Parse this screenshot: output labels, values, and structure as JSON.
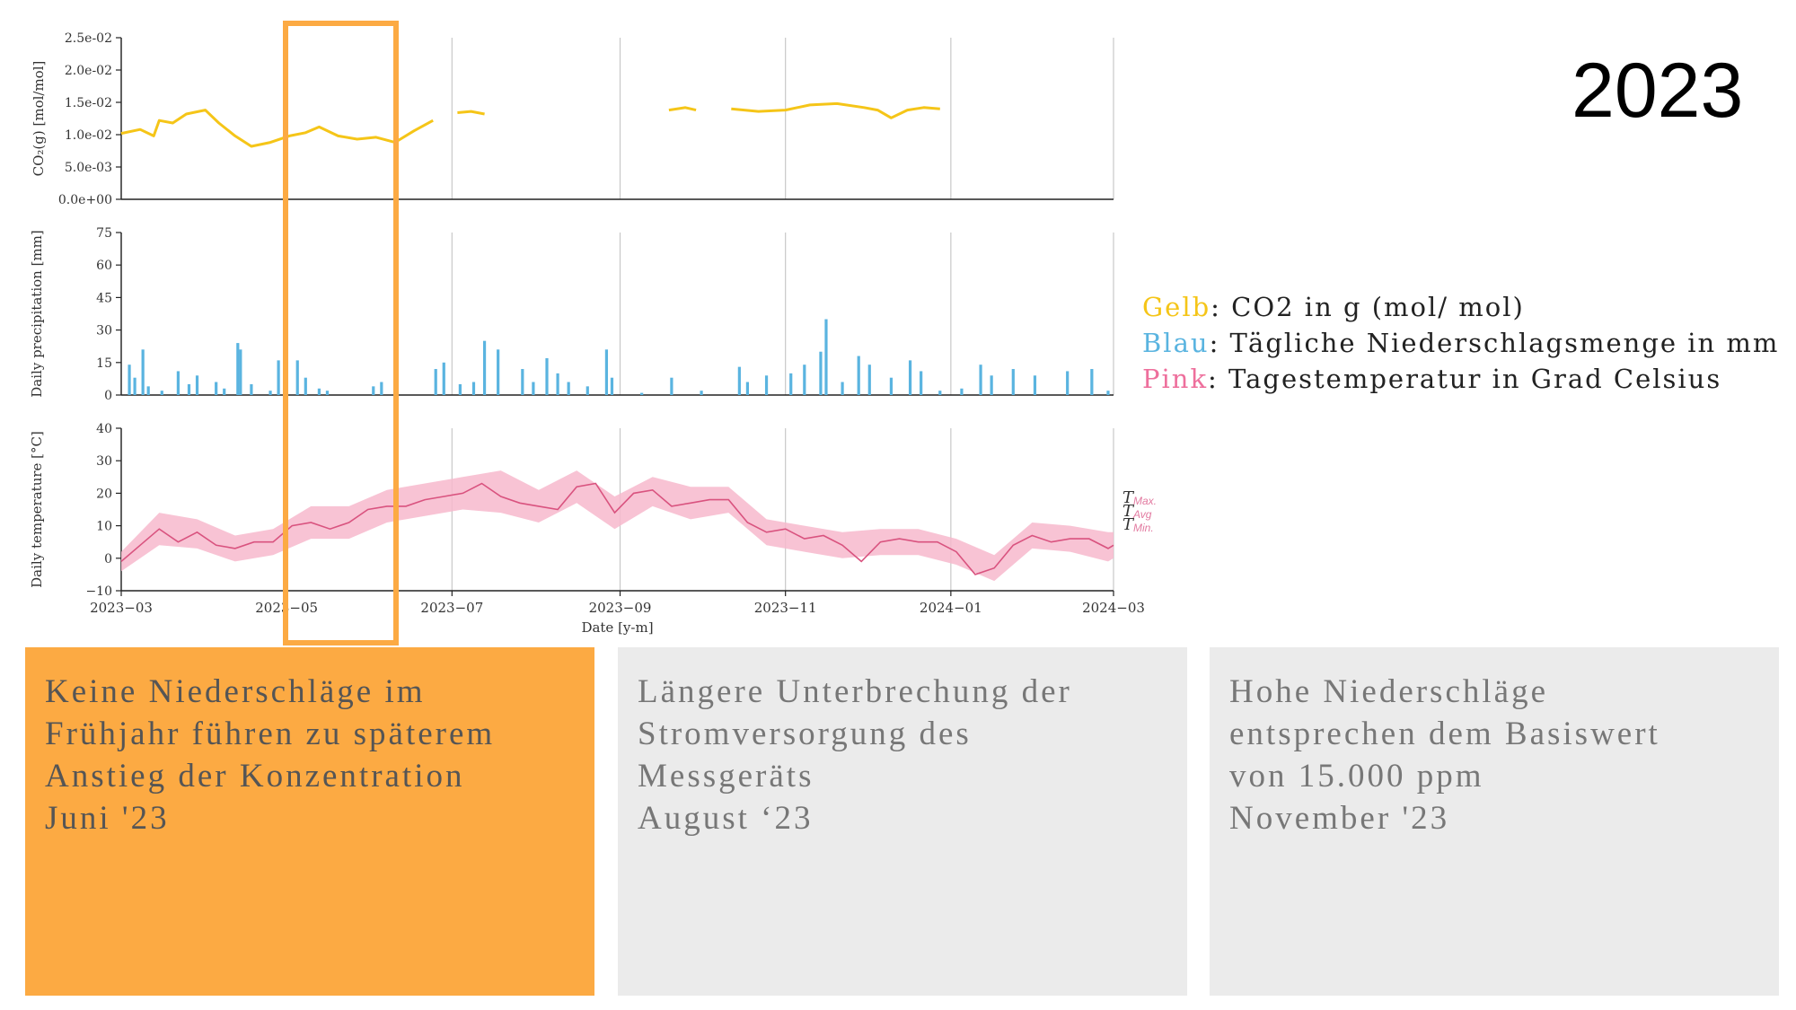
{
  "year_label": "2023",
  "legend": [
    {
      "key": "Gelb",
      "text": ": CO2 in g (mol/ mol)",
      "color": "#f5c518"
    },
    {
      "key": "Blau",
      "text": ": Tägliche Niederschlagsmenge in mm",
      "color": "#5ab4e0"
    },
    {
      "key": "Pink",
      "text": ": Tagestemperatur in Grad Celsius",
      "color": "#ee6f9c"
    }
  ],
  "panels": [
    {
      "lines": [
        "Keine Niederschläge im",
        "Frühjahr führen zu späterem",
        "Anstieg der Konzentration",
        "Juni '23"
      ]
    },
    {
      "lines": [
        "Längere Unterbrechung der",
        "Stromversorgung des",
        "Messgeräts",
        "August ‘23"
      ]
    },
    {
      "lines": [
        "Hohe Niederschläge",
        "entsprechen dem Basiswert",
        "von 15.000 ppm",
        "November '23"
      ]
    }
  ],
  "colors": {
    "co2": "#f5c518",
    "precip": "#5ab4e0",
    "temp_line": "#d9537f",
    "temp_band": "#f7b8cc",
    "highlight": "#fcaa43",
    "grid": "#c8c8c8"
  },
  "chart_data": [
    {
      "type": "line",
      "ylabel": "CO₂(g) [mol/mol]",
      "ylim": [
        0,
        0.025
      ],
      "yticks": [
        "0.0e+00",
        "5.0e-03",
        "1.0e-02",
        "1.5e-02",
        "2.0e-02",
        "2.5e-02"
      ],
      "yticks_values": [
        0,
        0.005,
        0.01,
        0.015,
        0.02,
        0.025
      ],
      "series": [
        {
          "values": [
            [
              "2023-03-01",
              0.0102
            ],
            [
              "2023-03-08",
              0.0108
            ],
            [
              "2023-03-13",
              0.0098
            ],
            [
              "2023-03-15",
              0.0122
            ],
            [
              "2023-03-20",
              0.0118
            ],
            [
              "2023-03-25",
              0.0132
            ],
            [
              "2023-04-01",
              0.0138
            ],
            [
              "2023-04-06",
              0.0118
            ],
            [
              "2023-04-12",
              0.0098
            ],
            [
              "2023-04-18",
              0.0082
            ],
            [
              "2023-04-25",
              0.0088
            ],
            [
              "2023-05-02",
              0.0098
            ],
            [
              "2023-05-08",
              0.0103
            ],
            [
              "2023-05-13",
              0.0112
            ],
            [
              "2023-05-20",
              0.0098
            ],
            [
              "2023-05-27",
              0.0093
            ],
            [
              "2023-06-03",
              0.0096
            ],
            [
              "2023-06-10",
              0.0088
            ],
            [
              "2023-06-17",
              0.0106
            ],
            [
              "2023-06-24",
              0.0122
            ]
          ]
        },
        {
          "values": [
            [
              "2023-07-03",
              0.0134
            ],
            [
              "2023-07-08",
              0.0136
            ],
            [
              "2023-07-13",
              0.0132
            ]
          ]
        },
        {
          "values": [
            [
              "2023-09-19",
              0.0138
            ],
            [
              "2023-09-25",
              0.0142
            ],
            [
              "2023-09-29",
              0.0138
            ]
          ]
        },
        {
          "values": [
            [
              "2023-10-12",
              0.014
            ],
            [
              "2023-10-22",
              0.0136
            ],
            [
              "2023-11-01",
              0.0138
            ],
            [
              "2023-11-10",
              0.0146
            ],
            [
              "2023-11-20",
              0.0148
            ],
            [
              "2023-11-30",
              0.0142
            ],
            [
              "2023-12-05",
              0.0138
            ],
            [
              "2023-12-10",
              0.0126
            ],
            [
              "2023-12-16",
              0.0138
            ],
            [
              "2023-12-22",
              0.0142
            ],
            [
              "2023-12-28",
              0.014
            ]
          ]
        }
      ]
    },
    {
      "type": "bar",
      "ylabel": "Daily precipitation [mm]",
      "ylim": [
        0,
        75
      ],
      "yticks": [
        "0",
        "15",
        "30",
        "45",
        "60",
        "75"
      ],
      "yticks_values": [
        0,
        15,
        30,
        45,
        60,
        75
      ],
      "values": [
        [
          "2023-03-04",
          14
        ],
        [
          "2023-03-06",
          8
        ],
        [
          "2023-03-09",
          21
        ],
        [
          "2023-03-11",
          4
        ],
        [
          "2023-03-16",
          2
        ],
        [
          "2023-03-22",
          11
        ],
        [
          "2023-03-26",
          5
        ],
        [
          "2023-03-29",
          9
        ],
        [
          "2023-04-05",
          6
        ],
        [
          "2023-04-08",
          3
        ],
        [
          "2023-04-13",
          24
        ],
        [
          "2023-04-14",
          21
        ],
        [
          "2023-04-18",
          5
        ],
        [
          "2023-04-25",
          2
        ],
        [
          "2023-04-28",
          16
        ],
        [
          "2023-05-01",
          3
        ],
        [
          "2023-05-05",
          16
        ],
        [
          "2023-05-08",
          8
        ],
        [
          "2023-05-13",
          3
        ],
        [
          "2023-05-16",
          2
        ],
        [
          "2023-06-02",
          4
        ],
        [
          "2023-06-05",
          6
        ],
        [
          "2023-06-25",
          12
        ],
        [
          "2023-06-28",
          15
        ],
        [
          "2023-07-04",
          5
        ],
        [
          "2023-07-09",
          6
        ],
        [
          "2023-07-13",
          25
        ],
        [
          "2023-07-18",
          21
        ],
        [
          "2023-07-27",
          12
        ],
        [
          "2023-07-31",
          6
        ],
        [
          "2023-08-05",
          17
        ],
        [
          "2023-08-09",
          10
        ],
        [
          "2023-08-13",
          6
        ],
        [
          "2023-08-20",
          4
        ],
        [
          "2023-08-27",
          21
        ],
        [
          "2023-08-29",
          8
        ],
        [
          "2023-09-09",
          1
        ],
        [
          "2023-09-20",
          8
        ],
        [
          "2023-10-01",
          2
        ],
        [
          "2023-10-15",
          13
        ],
        [
          "2023-10-18",
          6
        ],
        [
          "2023-10-25",
          9
        ],
        [
          "2023-11-03",
          10
        ],
        [
          "2023-11-08",
          14
        ],
        [
          "2023-11-14",
          20
        ],
        [
          "2023-11-16",
          35
        ],
        [
          "2023-11-22",
          6
        ],
        [
          "2023-11-28",
          18
        ],
        [
          "2023-12-02",
          14
        ],
        [
          "2023-12-10",
          8
        ],
        [
          "2023-12-17",
          16
        ],
        [
          "2023-12-21",
          11
        ],
        [
          "2023-12-28",
          2
        ],
        [
          "2024-01-05",
          3
        ],
        [
          "2024-01-12",
          14
        ],
        [
          "2024-01-16",
          9
        ],
        [
          "2024-01-24",
          12
        ],
        [
          "2024-02-01",
          9
        ],
        [
          "2024-02-13",
          11
        ],
        [
          "2024-02-22",
          12
        ],
        [
          "2024-02-28",
          2
        ]
      ]
    },
    {
      "type": "area",
      "ylabel": "Daily temperature [°C]",
      "xlabel": "Date [y-m]",
      "ylim": [
        -10,
        40
      ],
      "yticks": [
        "−10",
        "0",
        "10",
        "20",
        "30",
        "40"
      ],
      "yticks_values": [
        -10,
        0,
        10,
        20,
        30,
        40
      ],
      "xticks": [
        "2023−03",
        "2023−05",
        "2023−07",
        "2023−09",
        "2023−11",
        "2024−01",
        "2024−03"
      ],
      "xticks_values": [
        "2023-03-01",
        "2023-05-01",
        "2023-07-01",
        "2023-09-01",
        "2023-11-01",
        "2024-01-01",
        "2024-03-01"
      ],
      "xlim": [
        "2023-03-01",
        "2024-03-01"
      ],
      "annotations": [
        "T",
        "Max.",
        "T",
        "Avg",
        "T",
        "Min."
      ],
      "series": [
        {
          "name": "Avg",
          "values": [
            [
              "2023-03-01",
              -1
            ],
            [
              "2023-03-08",
              4
            ],
            [
              "2023-03-15",
              9
            ],
            [
              "2023-03-22",
              5
            ],
            [
              "2023-03-29",
              8
            ],
            [
              "2023-04-05",
              4
            ],
            [
              "2023-04-12",
              3
            ],
            [
              "2023-04-19",
              5
            ],
            [
              "2023-04-26",
              5
            ],
            [
              "2023-05-03",
              10
            ],
            [
              "2023-05-10",
              11
            ],
            [
              "2023-05-17",
              9
            ],
            [
              "2023-05-24",
              11
            ],
            [
              "2023-05-31",
              15
            ],
            [
              "2023-06-07",
              16
            ],
            [
              "2023-06-14",
              16
            ],
            [
              "2023-06-21",
              18
            ],
            [
              "2023-06-28",
              19
            ],
            [
              "2023-07-05",
              20
            ],
            [
              "2023-07-12",
              23
            ],
            [
              "2023-07-19",
              19
            ],
            [
              "2023-07-26",
              17
            ],
            [
              "2023-08-02",
              16
            ],
            [
              "2023-08-09",
              15
            ],
            [
              "2023-08-16",
              22
            ],
            [
              "2023-08-23",
              23
            ],
            [
              "2023-08-30",
              14
            ],
            [
              "2023-09-06",
              20
            ],
            [
              "2023-09-13",
              21
            ],
            [
              "2023-09-20",
              16
            ],
            [
              "2023-09-27",
              17
            ],
            [
              "2023-10-04",
              18
            ],
            [
              "2023-10-11",
              18
            ],
            [
              "2023-10-18",
              11
            ],
            [
              "2023-10-25",
              8
            ],
            [
              "2023-11-01",
              9
            ],
            [
              "2023-11-08",
              6
            ],
            [
              "2023-11-15",
              7
            ],
            [
              "2023-11-22",
              4
            ],
            [
              "2023-11-29",
              -1
            ],
            [
              "2023-12-06",
              5
            ],
            [
              "2023-12-13",
              6
            ],
            [
              "2023-12-20",
              5
            ],
            [
              "2023-12-27",
              5
            ],
            [
              "2024-01-03",
              2
            ],
            [
              "2024-01-10",
              -5
            ],
            [
              "2024-01-17",
              -3
            ],
            [
              "2024-01-24",
              4
            ],
            [
              "2024-01-31",
              7
            ],
            [
              "2024-02-07",
              5
            ],
            [
              "2024-02-14",
              6
            ],
            [
              "2024-02-21",
              6
            ],
            [
              "2024-02-28",
              3
            ],
            [
              "2024-03-01",
              4
            ]
          ]
        },
        {
          "name": "Max.",
          "values": [
            [
              "2023-03-01",
              2
            ],
            [
              "2023-03-15",
              14
            ],
            [
              "2023-03-29",
              12
            ],
            [
              "2023-04-12",
              7
            ],
            [
              "2023-04-26",
              9
            ],
            [
              "2023-05-10",
              16
            ],
            [
              "2023-05-24",
              16
            ],
            [
              "2023-06-07",
              21
            ],
            [
              "2023-06-21",
              23
            ],
            [
              "2023-07-05",
              25
            ],
            [
              "2023-07-19",
              27
            ],
            [
              "2023-08-02",
              21
            ],
            [
              "2023-08-16",
              27
            ],
            [
              "2023-08-30",
              19
            ],
            [
              "2023-09-13",
              25
            ],
            [
              "2023-09-27",
              22
            ],
            [
              "2023-10-11",
              22
            ],
            [
              "2023-10-25",
              12
            ],
            [
              "2023-11-08",
              10
            ],
            [
              "2023-11-22",
              8
            ],
            [
              "2023-12-06",
              9
            ],
            [
              "2023-12-20",
              9
            ],
            [
              "2024-01-03",
              6
            ],
            [
              "2024-01-17",
              1
            ],
            [
              "2024-01-31",
              11
            ],
            [
              "2024-02-14",
              10
            ],
            [
              "2024-02-28",
              8
            ],
            [
              "2024-03-01",
              8
            ]
          ]
        },
        {
          "name": "Min.",
          "values": [
            [
              "2023-03-01",
              -4
            ],
            [
              "2023-03-15",
              4
            ],
            [
              "2023-03-29",
              3
            ],
            [
              "2023-04-12",
              -1
            ],
            [
              "2023-04-26",
              1
            ],
            [
              "2023-05-10",
              6
            ],
            [
              "2023-05-24",
              6
            ],
            [
              "2023-06-07",
              11
            ],
            [
              "2023-06-21",
              13
            ],
            [
              "2023-07-05",
              15
            ],
            [
              "2023-07-19",
              14
            ],
            [
              "2023-08-02",
              11
            ],
            [
              "2023-08-16",
              17
            ],
            [
              "2023-08-30",
              9
            ],
            [
              "2023-09-13",
              16
            ],
            [
              "2023-09-27",
              12
            ],
            [
              "2023-10-11",
              14
            ],
            [
              "2023-10-25",
              4
            ],
            [
              "2023-11-08",
              2
            ],
            [
              "2023-11-22",
              0
            ],
            [
              "2023-12-06",
              1
            ],
            [
              "2023-12-20",
              1
            ],
            [
              "2024-01-03",
              -2
            ],
            [
              "2024-01-17",
              -7
            ],
            [
              "2024-01-31",
              3
            ],
            [
              "2024-02-14",
              2
            ],
            [
              "2024-02-28",
              -1
            ],
            [
              "2024-03-01",
              0
            ]
          ]
        }
      ]
    }
  ]
}
